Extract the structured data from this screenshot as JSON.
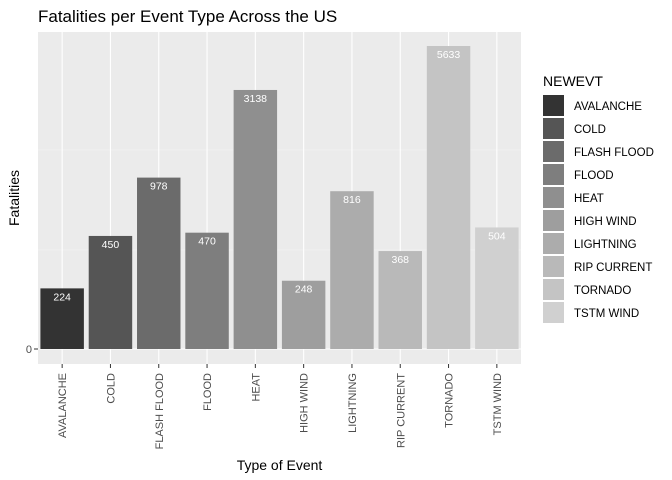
{
  "chart_data": {
    "type": "bar",
    "title": "Fatalities per Event Type Across the US",
    "xlabel": "Type of Event",
    "ylabel": "Fatalities",
    "categories": [
      "AVALANCHE",
      "COLD",
      "FLASH FLOOD",
      "FLOOD",
      "HEAT",
      "HIGH WIND",
      "LIGHTNING",
      "RIP CURRENT",
      "TORNADO",
      "TSTM WIND"
    ],
    "values": [
      224,
      450,
      978,
      470,
      3138,
      248,
      816,
      368,
      5633,
      504
    ],
    "data_labels": [
      "224",
      "450",
      "978",
      "470",
      "3138",
      "248",
      "816",
      "368",
      "5633",
      "504"
    ],
    "colors": [
      "#333333",
      "#555555",
      "#6b6b6b",
      "#7e7e7e",
      "#8f8f8f",
      "#9e9e9e",
      "#acacac",
      "#b9b9b9",
      "#c4c4c4",
      "#d0d0d0"
    ],
    "y_ticks": [
      "0"
    ],
    "y_scale": "log",
    "legend": {
      "title": "NEWEVT",
      "position": "right"
    },
    "grid": true,
    "panel_background": "#ebebeb"
  }
}
